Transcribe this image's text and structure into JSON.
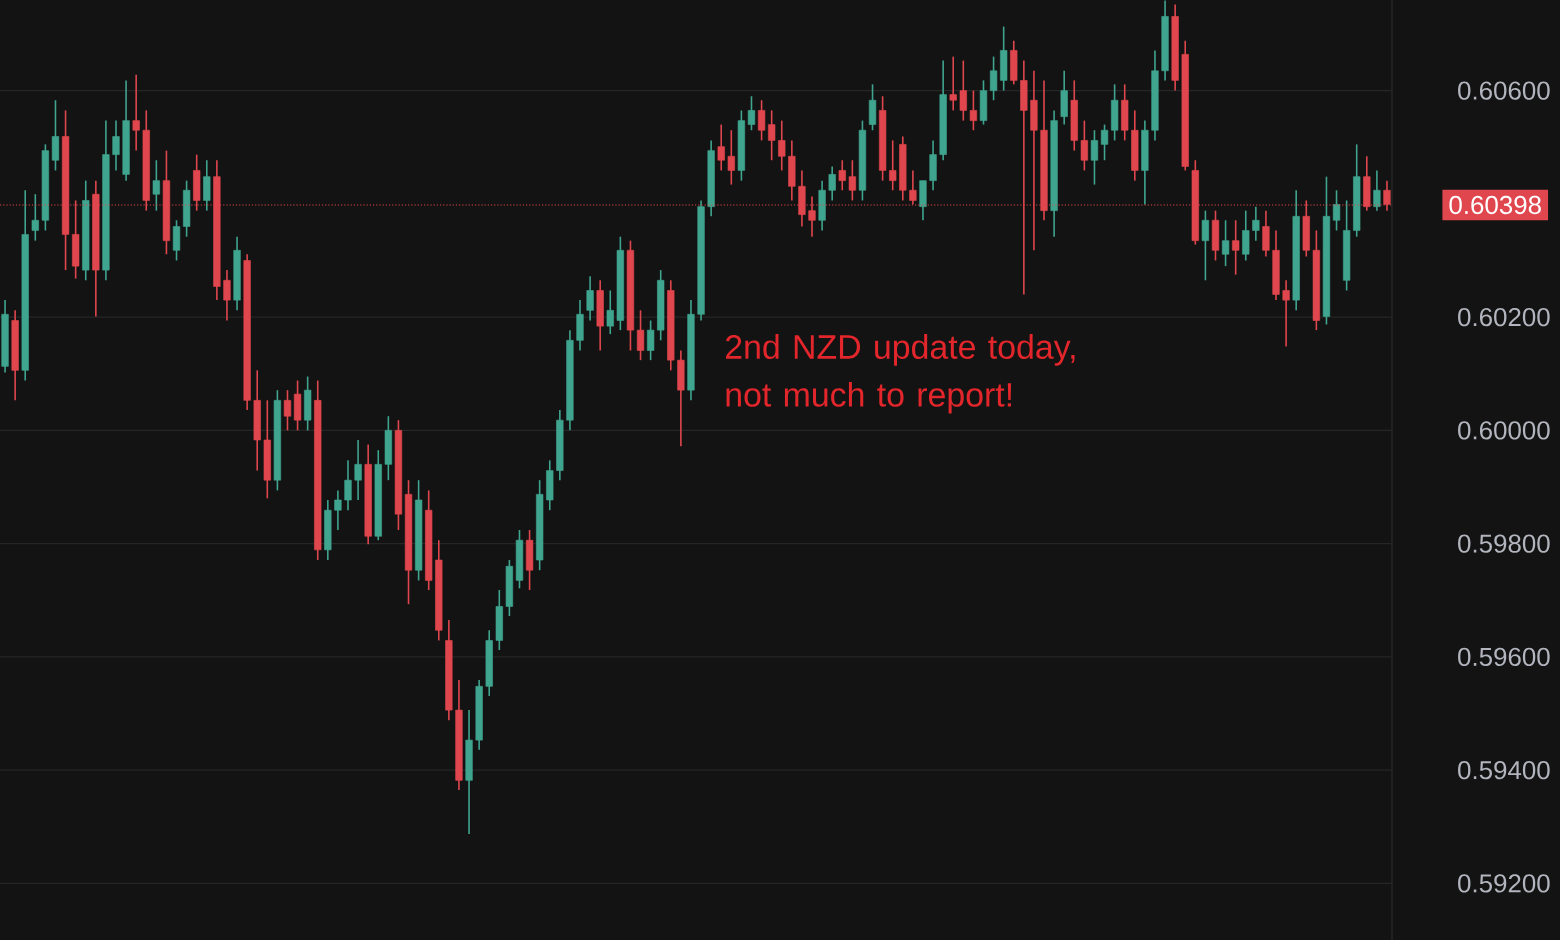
{
  "chart_data": {
    "type": "candlestick",
    "tick_labels": "y",
    "grid": "y",
    "categories": [
      null,
      null,
      null,
      null,
      null,
      null,
      null,
      null,
      null,
      null,
      null,
      null,
      null,
      null,
      null,
      null,
      null,
      null,
      null,
      null,
      null,
      null,
      null,
      null,
      null,
      null,
      null,
      null,
      null,
      null,
      null,
      null,
      null,
      null,
      null,
      null,
      null,
      null,
      null,
      null,
      null,
      null,
      null,
      null,
      null,
      null,
      null,
      null,
      null,
      null,
      null,
      null,
      null,
      null,
      null,
      null,
      null,
      null,
      null,
      null,
      null,
      null,
      null,
      null,
      null,
      null,
      null,
      null,
      null,
      null,
      null,
      null,
      null,
      null,
      null,
      null,
      null,
      null,
      null,
      null,
      null,
      null,
      null,
      null,
      null,
      null,
      null,
      null,
      null,
      null,
      null,
      null,
      null,
      null,
      null,
      null,
      null,
      null,
      null,
      null,
      null,
      null,
      null,
      null,
      null,
      null,
      null,
      null,
      null,
      null,
      null,
      null,
      null,
      null,
      null,
      null,
      null,
      null,
      null,
      null,
      null,
      null,
      null,
      null,
      null,
      null,
      null,
      null,
      null,
      null,
      null,
      null,
      null,
      null,
      null,
      null,
      null,
      null
    ],
    "ohlc": [
      [
        0.60113,
        0.6023,
        0.60102,
        0.60205
      ],
      [
        0.60194,
        0.60212,
        0.60053,
        0.60106
      ],
      [
        0.60106,
        0.60424,
        0.60088,
        0.60346
      ],
      [
        0.60353,
        0.60417,
        0.60335,
        0.60371
      ],
      [
        0.60371,
        0.60505,
        0.60353,
        0.60494
      ],
      [
        0.60477,
        0.60583,
        0.60459,
        0.60519
      ],
      [
        0.60519,
        0.60565,
        0.60283,
        0.60346
      ],
      [
        0.60346,
        0.60406,
        0.60268,
        0.6029
      ],
      [
        0.60283,
        0.60441,
        0.60265,
        0.60406
      ],
      [
        0.60417,
        0.60441,
        0.60201,
        0.60283
      ],
      [
        0.60283,
        0.60547,
        0.60265,
        0.60487
      ],
      [
        0.60487,
        0.60547,
        0.60459,
        0.60519
      ],
      [
        0.60452,
        0.60618,
        0.60441,
        0.60547
      ],
      [
        0.60547,
        0.60628,
        0.60494,
        0.6053
      ],
      [
        0.6053,
        0.60565,
        0.60388,
        0.60406
      ],
      [
        0.60417,
        0.60477,
        0.60388,
        0.60441
      ],
      [
        0.60441,
        0.60494,
        0.60311,
        0.60335
      ],
      [
        0.60318,
        0.60371,
        0.603,
        0.6036
      ],
      [
        0.6036,
        0.60441,
        0.60342,
        0.60424
      ],
      [
        0.60459,
        0.60487,
        0.60388,
        0.60406
      ],
      [
        0.60406,
        0.60477,
        0.60388,
        0.60448
      ],
      [
        0.60448,
        0.60477,
        0.6023,
        0.60254
      ],
      [
        0.60265,
        0.60283,
        0.60194,
        0.6023
      ],
      [
        0.6023,
        0.60342,
        0.60212,
        0.60318
      ],
      [
        0.603,
        0.60311,
        0.60036,
        0.60053
      ],
      [
        0.60053,
        0.60106,
        0.59929,
        0.59983
      ],
      [
        0.59983,
        0.60053,
        0.5988,
        0.59912
      ],
      [
        0.59912,
        0.60071,
        0.59894,
        0.60053
      ],
      [
        0.60053,
        0.60071,
        0.6,
        0.60025
      ],
      [
        0.60064,
        0.60088,
        0.6,
        0.60018
      ],
      [
        0.60018,
        0.60095,
        0.6,
        0.60071
      ],
      [
        0.60053,
        0.60088,
        0.59771,
        0.59789
      ],
      [
        0.59789,
        0.59877,
        0.59771,
        0.59859
      ],
      [
        0.59859,
        0.59894,
        0.59824,
        0.59877
      ],
      [
        0.59877,
        0.59947,
        0.59859,
        0.59912
      ],
      [
        0.59912,
        0.59983,
        0.59877,
        0.5994
      ],
      [
        0.5994,
        0.59975,
        0.59799,
        0.59813
      ],
      [
        0.59813,
        0.59965,
        0.59806,
        0.5994
      ],
      [
        0.5994,
        0.60025,
        0.59912,
        0.6
      ],
      [
        0.6,
        0.60018,
        0.59824,
        0.59852
      ],
      [
        0.59887,
        0.59912,
        0.59693,
        0.59753
      ],
      [
        0.59753,
        0.59912,
        0.59735,
        0.59877
      ],
      [
        0.59859,
        0.59894,
        0.59718,
        0.59735
      ],
      [
        0.59771,
        0.59806,
        0.59629,
        0.59647
      ],
      [
        0.59629,
        0.59665,
        0.59488,
        0.59506
      ],
      [
        0.59506,
        0.59559,
        0.59365,
        0.59382
      ],
      [
        0.59382,
        0.59506,
        0.59287,
        0.59453
      ],
      [
        0.59453,
        0.59559,
        0.59436,
        0.59548
      ],
      [
        0.59548,
        0.59647,
        0.59531,
        0.59629
      ],
      [
        0.59629,
        0.59718,
        0.59612,
        0.59689
      ],
      [
        0.59689,
        0.59771,
        0.59672,
        0.5976
      ],
      [
        0.59735,
        0.59824,
        0.59721,
        0.59806
      ],
      [
        0.59806,
        0.59824,
        0.59718,
        0.59753
      ],
      [
        0.59771,
        0.59912,
        0.59753,
        0.59887
      ],
      [
        0.59877,
        0.59947,
        0.59859,
        0.59929
      ],
      [
        0.59929,
        0.60036,
        0.59912,
        0.60018
      ],
      [
        0.60018,
        0.60177,
        0.6,
        0.60159
      ],
      [
        0.60159,
        0.6023,
        0.60141,
        0.60205
      ],
      [
        0.60212,
        0.60272,
        0.60194,
        0.60247
      ],
      [
        0.60247,
        0.60265,
        0.60141,
        0.60184
      ],
      [
        0.60184,
        0.60247,
        0.6017,
        0.60212
      ],
      [
        0.60194,
        0.60342,
        0.60177,
        0.60318
      ],
      [
        0.60318,
        0.60335,
        0.60141,
        0.60177
      ],
      [
        0.60177,
        0.60212,
        0.60124,
        0.60141
      ],
      [
        0.60141,
        0.60194,
        0.60124,
        0.60177
      ],
      [
        0.60177,
        0.60283,
        0.60159,
        0.60265
      ],
      [
        0.60247,
        0.60265,
        0.60106,
        0.60124
      ],
      [
        0.60124,
        0.60141,
        0.59972,
        0.60071
      ],
      [
        0.60071,
        0.6023,
        0.60053,
        0.60205
      ],
      [
        0.60205,
        0.60406,
        0.60194,
        0.60395
      ],
      [
        0.60395,
        0.60512,
        0.60378,
        0.60494
      ],
      [
        0.60501,
        0.6054,
        0.60459,
        0.60477
      ],
      [
        0.60484,
        0.6053,
        0.60434,
        0.60459
      ],
      [
        0.60459,
        0.60565,
        0.60441,
        0.60547
      ],
      [
        0.6054,
        0.6059,
        0.6053,
        0.60565
      ],
      [
        0.60565,
        0.60583,
        0.60512,
        0.6053
      ],
      [
        0.6054,
        0.60565,
        0.60477,
        0.60512
      ],
      [
        0.60512,
        0.60547,
        0.60459,
        0.60484
      ],
      [
        0.60484,
        0.60512,
        0.60406,
        0.60431
      ],
      [
        0.60431,
        0.60459,
        0.6036,
        0.60381
      ],
      [
        0.60388,
        0.60413,
        0.60342,
        0.60371
      ],
      [
        0.60371,
        0.60441,
        0.60353,
        0.60424
      ],
      [
        0.60424,
        0.60466,
        0.60406,
        0.60452
      ],
      [
        0.60459,
        0.60477,
        0.60424,
        0.60441
      ],
      [
        0.60448,
        0.60477,
        0.60406,
        0.60424
      ],
      [
        0.60424,
        0.60547,
        0.60406,
        0.6053
      ],
      [
        0.6054,
        0.60611,
        0.6053,
        0.60583
      ],
      [
        0.60565,
        0.6059,
        0.60441,
        0.60459
      ],
      [
        0.60459,
        0.60512,
        0.60424,
        0.60441
      ],
      [
        0.60505,
        0.60519,
        0.60406,
        0.60424
      ],
      [
        0.60424,
        0.60459,
        0.60399,
        0.60406
      ],
      [
        0.60395,
        0.60441,
        0.60371,
        0.60441
      ],
      [
        0.60441,
        0.60512,
        0.60424,
        0.60487
      ],
      [
        0.60487,
        0.60653,
        0.60477,
        0.60593
      ],
      [
        0.60593,
        0.6066,
        0.60565,
        0.60583
      ],
      [
        0.606,
        0.60653,
        0.60547,
        0.60565
      ],
      [
        0.60565,
        0.606,
        0.6053,
        0.60547
      ],
      [
        0.60547,
        0.60618,
        0.6054,
        0.606
      ],
      [
        0.606,
        0.6066,
        0.60583,
        0.60635
      ],
      [
        0.60618,
        0.60713,
        0.606,
        0.60671
      ],
      [
        0.60671,
        0.60688,
        0.60611,
        0.60618
      ],
      [
        0.60618,
        0.60653,
        0.6024,
        0.60565
      ],
      [
        0.60583,
        0.60635,
        0.60318,
        0.6053
      ],
      [
        0.6053,
        0.60618,
        0.60371,
        0.60388
      ],
      [
        0.60388,
        0.60565,
        0.60342,
        0.60547
      ],
      [
        0.60554,
        0.60635,
        0.6054,
        0.606
      ],
      [
        0.60583,
        0.60618,
        0.60494,
        0.60512
      ],
      [
        0.60512,
        0.60547,
        0.60459,
        0.60477
      ],
      [
        0.60477,
        0.6053,
        0.60434,
        0.60512
      ],
      [
        0.60505,
        0.6054,
        0.60477,
        0.6053
      ],
      [
        0.6053,
        0.60611,
        0.60512,
        0.60583
      ],
      [
        0.60583,
        0.60611,
        0.60512,
        0.6053
      ],
      [
        0.6053,
        0.60565,
        0.60441,
        0.60459
      ],
      [
        0.60459,
        0.60547,
        0.60399,
        0.6053
      ],
      [
        0.6053,
        0.60671,
        0.60512,
        0.60635
      ],
      [
        0.60635,
        0.60759,
        0.60618,
        0.60731
      ],
      [
        0.60731,
        0.60752,
        0.606,
        0.60618
      ],
      [
        0.60664,
        0.60688,
        0.60459,
        0.60466
      ],
      [
        0.60459,
        0.60477,
        0.60328,
        0.60335
      ],
      [
        0.60335,
        0.60388,
        0.60265,
        0.60371
      ],
      [
        0.60371,
        0.60388,
        0.603,
        0.60318
      ],
      [
        0.60311,
        0.60371,
        0.6029,
        0.60335
      ],
      [
        0.60335,
        0.60371,
        0.60275,
        0.60318
      ],
      [
        0.60311,
        0.60388,
        0.603,
        0.60353
      ],
      [
        0.60353,
        0.60395,
        0.60335,
        0.60371
      ],
      [
        0.6036,
        0.60388,
        0.60307,
        0.60318
      ],
      [
        0.60318,
        0.60353,
        0.6023,
        0.6024
      ],
      [
        0.60247,
        0.60265,
        0.60148,
        0.6023
      ],
      [
        0.6023,
        0.60424,
        0.60212,
        0.60378
      ],
      [
        0.60378,
        0.60406,
        0.60307,
        0.60318
      ],
      [
        0.60318,
        0.60353,
        0.60177,
        0.60194
      ],
      [
        0.60201,
        0.60448,
        0.60187,
        0.60378
      ],
      [
        0.60371,
        0.60424,
        0.60353,
        0.60399
      ],
      [
        0.60265,
        0.60406,
        0.60247,
        0.60353
      ],
      [
        0.60353,
        0.60505,
        0.60342,
        0.60448
      ],
      [
        0.60448,
        0.60484,
        0.60388,
        0.60395
      ],
      [
        0.60395,
        0.60459,
        0.60388,
        0.60424
      ],
      [
        0.60424,
        0.60441,
        0.60388,
        0.60399
      ]
    ],
    "colors": [
      "#3fa58f",
      "#e0464e",
      "#3fa58f",
      "#3fa58f",
      "#3fa58f",
      "#3fa58f",
      "#e0464e",
      "#e0464e",
      "#3fa58f",
      "#e0464e",
      "#3fa58f",
      "#3fa58f",
      "#3fa58f",
      "#e0464e",
      "#e0464e",
      "#3fa58f",
      "#e0464e",
      "#3fa58f",
      "#3fa58f",
      "#e0464e",
      "#3fa58f",
      "#e0464e",
      "#e0464e",
      "#3fa58f",
      "#e0464e",
      "#e0464e",
      "#e0464e",
      "#3fa58f",
      "#e0464e",
      "#e0464e",
      "#3fa58f",
      "#e0464e",
      "#3fa58f",
      "#3fa58f",
      "#3fa58f",
      "#3fa58f",
      "#e0464e",
      "#3fa58f",
      "#3fa58f",
      "#e0464e",
      "#e0464e",
      "#3fa58f",
      "#e0464e",
      "#e0464e",
      "#e0464e",
      "#e0464e",
      "#3fa58f",
      "#3fa58f",
      "#3fa58f",
      "#3fa58f",
      "#3fa58f",
      "#3fa58f",
      "#e0464e",
      "#3fa58f",
      "#3fa58f",
      "#3fa58f",
      "#3fa58f",
      "#3fa58f",
      "#3fa58f",
      "#e0464e",
      "#3fa58f",
      "#3fa58f",
      "#e0464e",
      "#e0464e",
      "#3fa58f",
      "#3fa58f",
      "#e0464e",
      "#e0464e",
      "#3fa58f",
      "#3fa58f",
      "#3fa58f",
      "#e0464e",
      "#e0464e",
      "#3fa58f",
      "#3fa58f",
      "#e0464e",
      "#e0464e",
      "#e0464e",
      "#e0464e",
      "#e0464e",
      "#e0464e",
      "#3fa58f",
      "#3fa58f",
      "#e0464e",
      "#e0464e",
      "#3fa58f",
      "#3fa58f",
      "#e0464e",
      "#e0464e",
      "#e0464e",
      "#e0464e",
      "#3fa58f",
      "#3fa58f",
      "#3fa58f",
      "#e0464e",
      "#e0464e",
      "#e0464e",
      "#3fa58f",
      "#3fa58f",
      "#3fa58f",
      "#e0464e",
      "#e0464e",
      "#e0464e",
      "#e0464e",
      "#3fa58f",
      "#3fa58f",
      "#e0464e",
      "#e0464e",
      "#3fa58f",
      "#3fa58f",
      "#3fa58f",
      "#e0464e",
      "#e0464e",
      "#3fa58f",
      "#3fa58f",
      "#3fa58f",
      "#e0464e",
      "#e0464e",
      "#e0464e",
      "#3fa58f",
      "#e0464e",
      "#3fa58f",
      "#e0464e",
      "#3fa58f",
      "#3fa58f",
      "#e0464e",
      "#e0464e",
      "#e0464e",
      "#3fa58f",
      "#e0464e",
      "#e0464e",
      "#3fa58f",
      "#3fa58f",
      "#3fa58f",
      "#3fa58f",
      "#e0464e",
      "#3fa58f",
      "#e0464e"
    ],
    "ylim": [
      0.591,
      0.6076
    ],
    "yticks": [
      {
        "value": 0.592,
        "label": "0.59200"
      },
      {
        "value": 0.594,
        "label": "0.59400"
      },
      {
        "value": 0.596,
        "label": "0.59600"
      },
      {
        "value": 0.598,
        "label": "0.59800"
      },
      {
        "value": 0.6,
        "label": "0.60000"
      },
      {
        "value": 0.602,
        "label": "0.60200"
      },
      {
        "value": 0.606,
        "label": "0.60600"
      }
    ],
    "ref_lines": [
      {
        "axis": "y",
        "value": 0.60398,
        "label": "0.60398",
        "color": "#e0464e",
        "line_style": "dotted"
      }
    ],
    "annotations": [
      "2nd NZD update today, not much to report!"
    ]
  }
}
